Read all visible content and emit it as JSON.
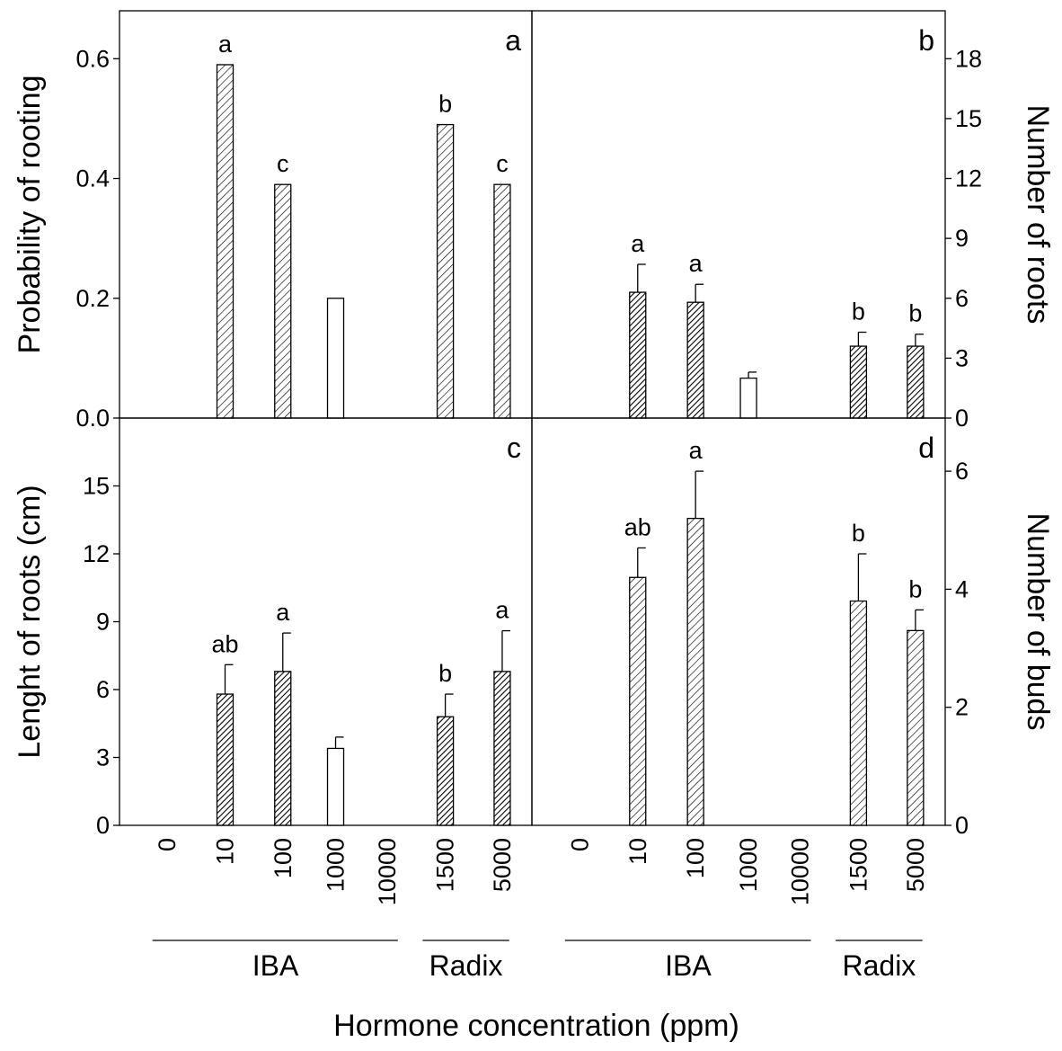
{
  "figure": {
    "xlabel": "Hormone concentration (ppm)",
    "groups": [
      {
        "label": "IBA",
        "categories": [
          "0",
          "10",
          "100",
          "1000",
          "10000"
        ]
      },
      {
        "label": "Radix",
        "categories": [
          "1500",
          "5000"
        ]
      }
    ]
  },
  "chart_data": [
    {
      "type": "bar",
      "panel_label": "a",
      "ylabel": "Probability of rooting",
      "yaxis_side": "left",
      "ylim": [
        0,
        0.68
      ],
      "yticks": [
        "0.0",
        "0.2",
        "0.4",
        "0.6"
      ],
      "categories": [
        "0",
        "10",
        "100",
        "1000",
        "10000",
        "1500",
        "5000"
      ],
      "values": [
        0,
        0.59,
        0.39,
        0.2,
        0,
        0.49,
        0.39
      ],
      "errors": [
        null,
        null,
        null,
        null,
        null,
        null,
        null
      ],
      "letters": [
        "",
        "a",
        "c",
        "",
        "",
        "b",
        "c"
      ],
      "fills": [
        "none",
        "sparse-hatch",
        "sparse-hatch",
        "white",
        "none",
        "sparse-hatch",
        "sparse-hatch"
      ]
    },
    {
      "type": "bar",
      "panel_label": "b",
      "ylabel": "Number of roots",
      "yaxis_side": "right",
      "ylim": [
        0,
        20.4
      ],
      "yticks": [
        "0",
        "3",
        "6",
        "9",
        "12",
        "15",
        "18"
      ],
      "categories": [
        "0",
        "10",
        "100",
        "1000",
        "10000",
        "1500",
        "5000"
      ],
      "values": [
        0,
        6.3,
        5.8,
        2.0,
        0,
        3.6,
        3.6
      ],
      "errors": [
        null,
        1.4,
        0.9,
        0.3,
        null,
        0.7,
        0.6
      ],
      "letters": [
        "",
        "a",
        "a",
        "",
        "",
        "b",
        "b"
      ],
      "fills": [
        "none",
        "dense-hatch",
        "dense-hatch",
        "white",
        "none",
        "dense-hatch",
        "dense-hatch"
      ]
    },
    {
      "type": "bar",
      "panel_label": "c",
      "ylabel": "Lenght of roots (cm)",
      "yaxis_side": "left",
      "ylim": [
        0,
        18
      ],
      "yticks": [
        "0",
        "3",
        "6",
        "9",
        "12",
        "15"
      ],
      "categories": [
        "0",
        "10",
        "100",
        "1000",
        "10000",
        "1500",
        "5000"
      ],
      "values": [
        0,
        5.8,
        6.8,
        3.4,
        0,
        4.8,
        6.8
      ],
      "errors": [
        null,
        1.3,
        1.7,
        0.5,
        null,
        1.0,
        1.8
      ],
      "letters": [
        "",
        "ab",
        "a",
        "",
        "",
        "b",
        "a"
      ],
      "fills": [
        "none",
        "dense-hatch",
        "dense-hatch",
        "white",
        "none",
        "dense-hatch",
        "dense-hatch"
      ]
    },
    {
      "type": "bar",
      "panel_label": "d",
      "ylabel": "Number of buds",
      "yaxis_side": "right",
      "ylim": [
        0,
        6.9
      ],
      "yticks": [
        "0",
        "2",
        "4",
        "6"
      ],
      "categories": [
        "0",
        "10",
        "100",
        "1000",
        "10000",
        "1500",
        "5000"
      ],
      "values": [
        0,
        4.2,
        5.2,
        0,
        0,
        3.8,
        3.3
      ],
      "errors": [
        null,
        0.5,
        0.8,
        null,
        null,
        0.8,
        0.35
      ],
      "letters": [
        "",
        "ab",
        "a",
        "",
        "",
        "b",
        "b"
      ],
      "fills": [
        "none",
        "sparse-hatch",
        "sparse-hatch",
        "none",
        "none",
        "sparse-hatch",
        "sparse-hatch"
      ]
    }
  ]
}
